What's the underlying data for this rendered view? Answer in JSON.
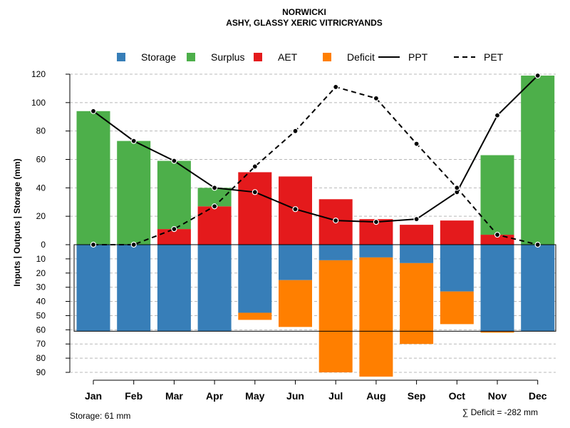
{
  "chart_data": {
    "type": "bar",
    "title": "NORWICKI",
    "subtitle": "ASHY, GLASSY XERIC VITRICRYANDS",
    "ylabel": "Inputs | Outputs | Storage    (mm)",
    "categories": [
      "Jan",
      "Feb",
      "Mar",
      "Apr",
      "May",
      "Jun",
      "Jul",
      "Aug",
      "Sep",
      "Oct",
      "Nov",
      "Dec"
    ],
    "upper_ylim": [
      0,
      120
    ],
    "lower_ylim": [
      0,
      90
    ],
    "upper_ticks": [
      "120",
      "100",
      "80",
      "60",
      "40",
      "20",
      "0"
    ],
    "lower_ticks": [
      "10",
      "20",
      "30",
      "40",
      "50",
      "60",
      "70",
      "80",
      "90"
    ],
    "series": [
      {
        "name": "Storage",
        "color": "#377EB8",
        "values": [
          61,
          61,
          61,
          61,
          48,
          25,
          11,
          9,
          13,
          33,
          61,
          61
        ]
      },
      {
        "name": "Surplus",
        "color": "#4DAF4A",
        "values": [
          94,
          73,
          48,
          13,
          0,
          0,
          0,
          0,
          0,
          0,
          56,
          119
        ]
      },
      {
        "name": "AET",
        "color": "#E41A1C",
        "values": [
          0,
          0,
          11,
          27,
          51,
          48,
          32,
          18,
          14,
          17,
          7,
          0
        ]
      },
      {
        "name": "Deficit",
        "color": "#FF7F00",
        "values": [
          0,
          0,
          0,
          0,
          5,
          33,
          79,
          84,
          57,
          23,
          1,
          0
        ]
      },
      {
        "name": "PPT",
        "color": "#000000",
        "style": "solid",
        "values": [
          94,
          73,
          59,
          40,
          37,
          25,
          17,
          16,
          18,
          37,
          91,
          119
        ]
      },
      {
        "name": "PET",
        "color": "#000000",
        "style": "dashed",
        "values": [
          0,
          0,
          11,
          27,
          55,
          80,
          111,
          103,
          71,
          40,
          7,
          0
        ]
      }
    ],
    "legend": {
      "placement": "top",
      "items": [
        {
          "label": "Storage",
          "kind": "square",
          "color": "#377EB8"
        },
        {
          "label": "Surplus",
          "kind": "square",
          "color": "#4DAF4A"
        },
        {
          "label": "AET",
          "kind": "square",
          "color": "#E41A1C"
        },
        {
          "label": "Deficit",
          "kind": "square",
          "color": "#FF7F00"
        },
        {
          "label": "PPT",
          "kind": "solid-line",
          "color": "#000000"
        },
        {
          "label": "PET",
          "kind": "dashed-line",
          "color": "#000000"
        }
      ]
    },
    "storage_capacity": 61,
    "footer_left": "Storage: 61 mm",
    "footer_right": "∑ Deficit = -282 mm"
  }
}
